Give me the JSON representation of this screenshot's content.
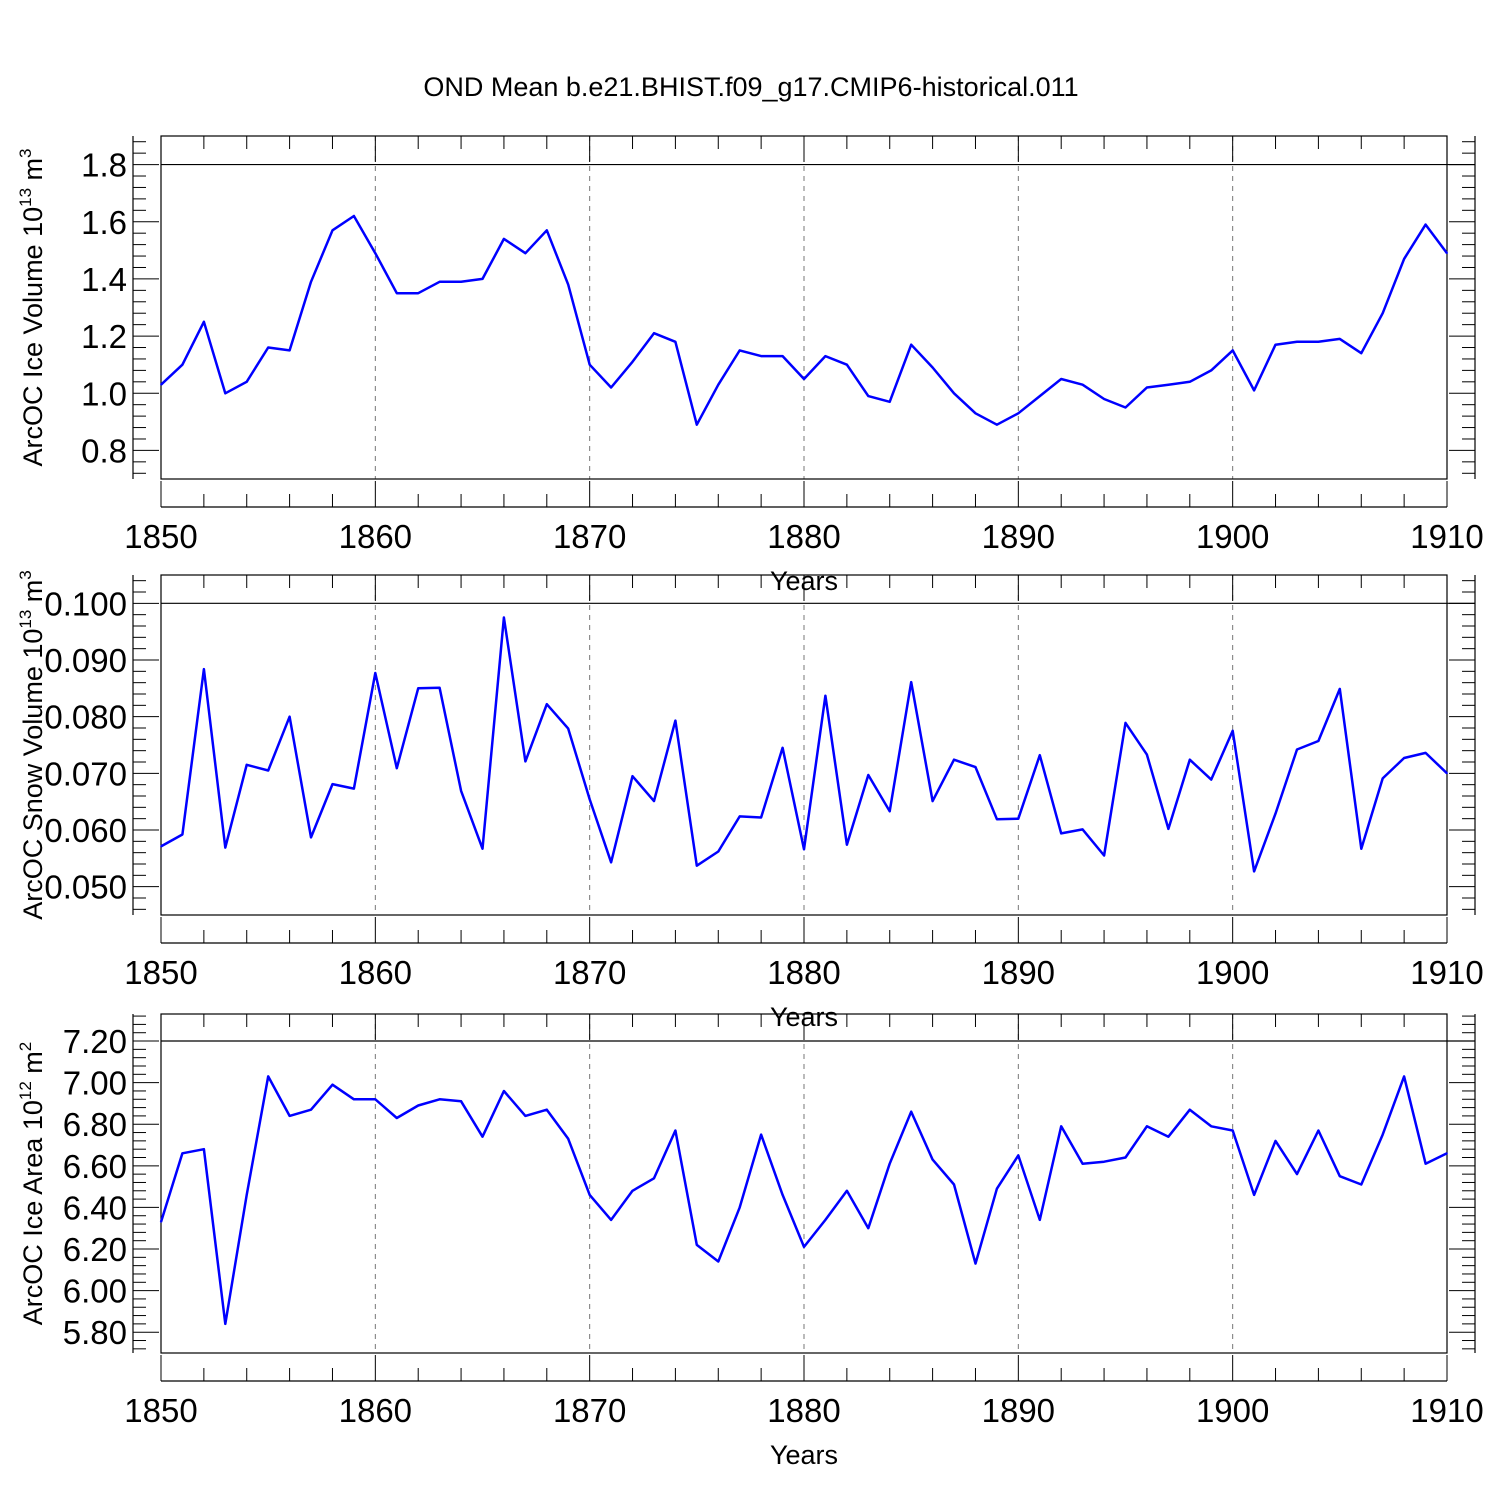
{
  "title": "OND Mean b.e21.BHIST.f09_g17.CMIP6-historical.011",
  "colors": {
    "line": "#0000ff",
    "axis": "#000000",
    "grid": "#777777"
  },
  "chart_data": [
    {
      "type": "line",
      "title": "",
      "xlabel": "Years",
      "ylabel": {
        "text": "ArcOC Ice Volume 10",
        "sup": "13",
        "unit": " m",
        "unit_sup": "3"
      },
      "xlim": [
        1850,
        1910
      ],
      "ylim": [
        0.7,
        1.9
      ],
      "ref_y": 1.8,
      "x_ticks": [
        "1850",
        "1860",
        "1870",
        "1880",
        "1890",
        "1900",
        "1910"
      ],
      "y_ticks": [
        "0.8",
        "1.0",
        "1.2",
        "1.4",
        "1.6",
        "1.8"
      ],
      "x_start": 1850,
      "series": [
        {
          "name": "ArcOC Ice Volume",
          "values": [
            1.03,
            1.1,
            1.25,
            1.0,
            1.04,
            1.16,
            1.15,
            1.39,
            1.57,
            1.62,
            1.49,
            1.35,
            1.35,
            1.39,
            1.39,
            1.4,
            1.54,
            1.49,
            1.57,
            1.38,
            1.1,
            1.02,
            1.11,
            1.21,
            1.18,
            0.89,
            1.03,
            1.15,
            1.13,
            1.13,
            1.05,
            1.13,
            1.1,
            0.99,
            0.97,
            1.17,
            1.09,
            1.0,
            0.93,
            0.89,
            0.93,
            0.99,
            1.05,
            1.03,
            0.98,
            0.95,
            1.02,
            1.03,
            1.04,
            1.08,
            1.15,
            1.01,
            1.17,
            1.18,
            1.18,
            1.19,
            1.14,
            1.28,
            1.47,
            1.59,
            1.49
          ]
        }
      ]
    },
    {
      "type": "line",
      "title": "",
      "xlabel": "Years",
      "ylabel": {
        "text": "ArcOC Snow Volume 10",
        "sup": "13",
        "unit": " m",
        "unit_sup": "3"
      },
      "xlim": [
        1850,
        1910
      ],
      "ylim": [
        0.045,
        0.105
      ],
      "ref_y": 0.1,
      "x_ticks": [
        "1850",
        "1860",
        "1870",
        "1880",
        "1890",
        "1900",
        "1910"
      ],
      "y_ticks": [
        "0.050",
        "0.060",
        "0.070",
        "0.080",
        "0.090",
        "0.100"
      ],
      "x_start": 1850,
      "series": [
        {
          "name": "ArcOC Snow Volume",
          "values": [
            0.0571,
            0.0592,
            0.0884,
            0.0569,
            0.0715,
            0.0705,
            0.08,
            0.0587,
            0.0681,
            0.0673,
            0.0877,
            0.0709,
            0.085,
            0.0851,
            0.0669,
            0.0567,
            0.0975,
            0.0721,
            0.0822,
            0.0779,
            0.0654,
            0.0543,
            0.0695,
            0.0651,
            0.0793,
            0.0537,
            0.0562,
            0.0624,
            0.0622,
            0.0745,
            0.0566,
            0.0837,
            0.0574,
            0.0697,
            0.0633,
            0.0861,
            0.0651,
            0.0724,
            0.0711,
            0.0619,
            0.062,
            0.0732,
            0.0594,
            0.0601,
            0.0555,
            0.0789,
            0.0733,
            0.0602,
            0.0724,
            0.0689,
            0.0775,
            0.0527,
            0.0629,
            0.0742,
            0.0757,
            0.0849,
            0.0567,
            0.0691,
            0.0727,
            0.0736,
            0.07
          ]
        }
      ]
    },
    {
      "type": "line",
      "title": "",
      "xlabel": "Years",
      "ylabel": {
        "text": "ArcOC Ice Area 10",
        "sup": "12",
        "unit": " m",
        "unit_sup": "2"
      },
      "xlim": [
        1850,
        1910
      ],
      "ylim": [
        5.7,
        7.33
      ],
      "ref_y": 7.2,
      "x_ticks": [
        "1850",
        "1860",
        "1870",
        "1880",
        "1890",
        "1900",
        "1910"
      ],
      "y_ticks": [
        "5.80",
        "6.00",
        "6.20",
        "6.40",
        "6.60",
        "6.80",
        "7.00",
        "7.20"
      ],
      "x_start": 1850,
      "series": [
        {
          "name": "ArcOC Ice Area",
          "values": [
            6.33,
            6.66,
            6.68,
            5.84,
            6.46,
            7.03,
            6.84,
            6.87,
            6.99,
            6.92,
            6.92,
            6.83,
            6.89,
            6.92,
            6.91,
            6.74,
            6.96,
            6.84,
            6.87,
            6.73,
            6.46,
            6.34,
            6.48,
            6.54,
            6.77,
            6.22,
            6.14,
            6.4,
            6.75,
            6.46,
            6.21,
            6.34,
            6.48,
            6.3,
            6.61,
            6.86,
            6.63,
            6.51,
            6.13,
            6.49,
            6.65,
            6.34,
            6.79,
            6.61,
            6.62,
            6.64,
            6.79,
            6.74,
            6.87,
            6.79,
            6.77,
            6.46,
            6.72,
            6.56,
            6.77,
            6.55,
            6.51,
            6.75,
            7.03,
            6.61,
            6.66
          ]
        }
      ]
    }
  ]
}
